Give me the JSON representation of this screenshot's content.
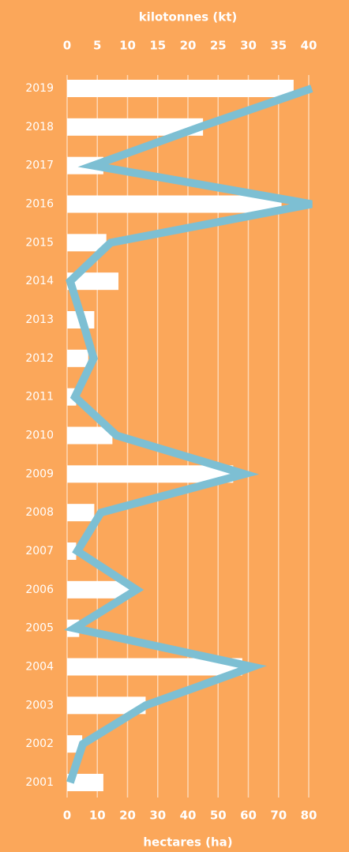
{
  "chart_data": {
    "type": "combo",
    "xlabel": "hectares (ha)",
    "x2label": "kilotonnes (kt)",
    "categories": [
      "2019",
      "2018",
      "2017",
      "2016",
      "2015",
      "2014",
      "2013",
      "2012",
      "2011",
      "2010",
      "2009",
      "2008",
      "2007",
      "2006",
      "2005",
      "2004",
      "2003",
      "2002",
      "2001"
    ],
    "series": [
      {
        "type": "bar",
        "color": "#ffffff",
        "axis": "x",
        "values": [
          75,
          45,
          12,
          71,
          13,
          17,
          9,
          7,
          3,
          15,
          55,
          9,
          3,
          21,
          4,
          58,
          26,
          5,
          12
        ]
      },
      {
        "type": "line",
        "color": "#7dbfd3",
        "axis": "x2",
        "values": [
          40.5,
          22,
          4.3,
          40.5,
          7.2,
          0.5,
          2.5,
          4.4,
          1.3,
          8.2,
          29.4,
          5.6,
          1.7,
          11.5,
          1.2,
          30.7,
          13,
          2.6,
          0.5
        ]
      }
    ],
    "xlim": [
      0,
      80
    ],
    "xticks": [
      0,
      10,
      20,
      30,
      40,
      50,
      60,
      70,
      80
    ],
    "x2lim": [
      0,
      40
    ],
    "x2ticks": [
      0,
      5,
      10,
      15,
      20,
      25,
      30,
      35,
      40
    ],
    "grid": true
  }
}
